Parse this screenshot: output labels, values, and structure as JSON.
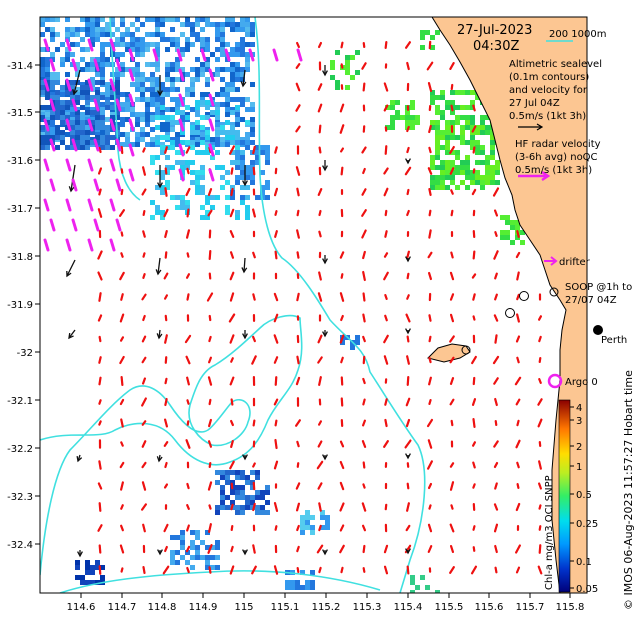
{
  "map": {
    "extent": {
      "lon": [
        114.5,
        115.85
      ],
      "lat": [
        -32.5,
        -31.33
      ]
    },
    "date_label": "27-Jul-2023",
    "time_label": "04:30Z",
    "scale_label": "200   1000m",
    "x_ticks": [
      "114.6",
      "114.7",
      "114.8",
      "114.9",
      "115",
      "115.1",
      "115.2",
      "115.3",
      "115.4",
      "115.5",
      "115.6",
      "115.7",
      "115.8"
    ],
    "y_ticks": [
      "-31.4",
      "-31.5",
      "-31.6",
      "-31.7",
      "-31.8",
      "-31.9",
      "-32",
      "-32.1",
      "-32.2",
      "-32.3",
      "-32.4"
    ],
    "altimetry_text": [
      "Altimetric sealevel",
      "(0.1m contours)",
      "and velocity for",
      "27 Jul 04Z",
      "0.5m/s (1kt 3h)"
    ],
    "hf_text": [
      "HF radar velocity",
      "(3-6h avg) noQC",
      "0.5m/s (1kt 3h)"
    ],
    "drifter_label": "drifter",
    "soop_text": [
      "SOOP @1h to",
      "27/07 04Z"
    ],
    "perth_label": "Perth",
    "argo_label": "Argo 0",
    "colorbar": {
      "label": "Chl-a mg/m3 OCI SNPP",
      "ticks": [
        "4",
        "3",
        "2",
        "1",
        "0.5",
        "0.25",
        "0.1",
        "0.05"
      ]
    },
    "credit": "© IMOS 06-Aug-2023 11:57:27 Hobart time",
    "colors": {
      "land": "#FCC692",
      "contour": "#40E0E0",
      "hf_arrows": "#EE1111",
      "altimetry_arrows": "#111111",
      "drifter": "#EE22EE",
      "argo_ring": "#EE22EE"
    }
  }
}
